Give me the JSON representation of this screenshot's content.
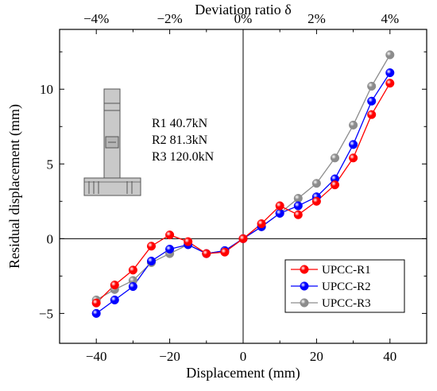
{
  "chart_data": {
    "type": "line",
    "title": "",
    "xlabel": "Displacement (mm)",
    "ylabel": "Residual displacement (mm)",
    "top_axis_label": "Deviation ratio δ",
    "xlim": [
      -50,
      50
    ],
    "ylim": [
      -7,
      14
    ],
    "x_ticks": [
      -40,
      -20,
      0,
      20,
      40
    ],
    "x_tick_labels": [
      "−40",
      "−20",
      "0",
      "20",
      "40"
    ],
    "y_ticks": [
      -5,
      0,
      5,
      10
    ],
    "y_tick_labels": [
      "−5",
      "0",
      "5",
      "10"
    ],
    "top_ticks": [
      -40,
      -20,
      0,
      20,
      40
    ],
    "top_tick_labels": [
      "−4%",
      "−2%",
      "0%",
      "2%",
      "4%"
    ],
    "reference_lines": {
      "x": 0,
      "y": 0
    },
    "grid": false,
    "legend_position": "bottom-right",
    "annotations": [
      "R1 40.7kN",
      "R2 81.3kN",
      "R3 120.0kN"
    ],
    "inset_icon": "column-specimen-icon",
    "series": [
      {
        "name": "UPCC-R1",
        "color": "#ff0000",
        "x": [
          -40,
          -35,
          -30,
          -25,
          -20,
          -15,
          -10,
          -5,
          0,
          5,
          10,
          15,
          20,
          25,
          30,
          35,
          40
        ],
        "y": [
          -4.3,
          -3.1,
          -2.1,
          -0.5,
          0.25,
          -0.2,
          -1.0,
          -0.9,
          0,
          1.0,
          2.2,
          1.6,
          2.5,
          3.6,
          5.4,
          8.3,
          10.4
        ]
      },
      {
        "name": "UPCC-R2",
        "color": "#0000ff",
        "x": [
          -40,
          -35,
          -30,
          -25,
          -20,
          -15,
          -10,
          -5,
          0,
          5,
          10,
          15,
          20,
          25,
          30,
          35,
          40
        ],
        "y": [
          -5.0,
          -4.1,
          -3.2,
          -1.5,
          -0.7,
          -0.4,
          -1.0,
          -0.8,
          0,
          0.8,
          1.7,
          2.2,
          2.8,
          4.0,
          6.3,
          9.2,
          11.1
        ]
      },
      {
        "name": "UPCC-R3",
        "color": "#8c8c8c",
        "x": [
          -40,
          -35,
          -30,
          -25,
          -20,
          -15,
          -10,
          -5,
          0,
          5,
          10,
          15,
          20,
          25,
          30,
          35,
          40
        ],
        "y": [
          -4.1,
          -3.4,
          -2.8,
          -1.6,
          -1.0,
          -0.4,
          -1.0,
          -0.8,
          0,
          0.8,
          1.7,
          2.7,
          3.7,
          5.4,
          7.6,
          10.2,
          12.3
        ]
      }
    ]
  }
}
